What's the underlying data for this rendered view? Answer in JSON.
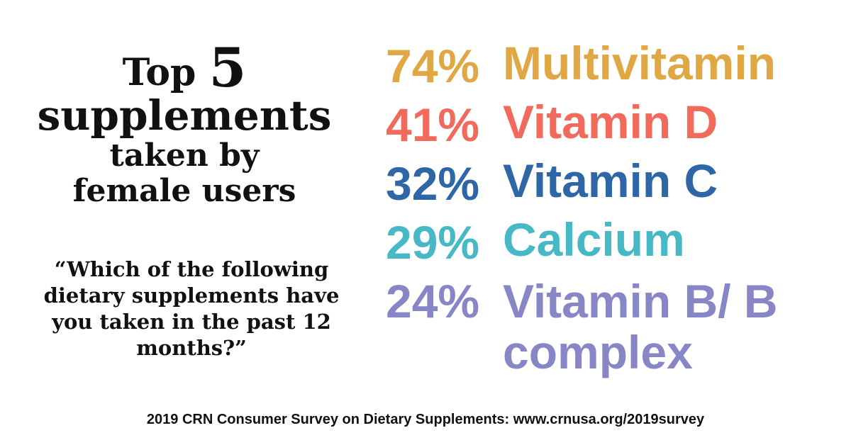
{
  "title": {
    "line1_prefix": "Top",
    "line1_number": "5",
    "line2": "supplements",
    "line3": "taken by",
    "line4": "female users"
  },
  "question": "“Which of the following dietary supplements have you taken in the past 12 months?”",
  "items": [
    {
      "percent": "74%",
      "name": "Multivitamin",
      "color": "#E0A845"
    },
    {
      "percent": "41%",
      "name": "Vitamin D",
      "color": "#F26A5B"
    },
    {
      "percent": "32%",
      "name": "Vitamin C",
      "color": "#2E66A6"
    },
    {
      "percent": "29%",
      "name": "Calcium",
      "color": "#47B8C6"
    },
    {
      "percent": "24%",
      "name": "Vitamin B/ B complex",
      "color": "#8786C6"
    }
  ],
  "footer": "2019 CRN Consumer Survey on Dietary Supplements: www.crnusa.org/2019survey"
}
